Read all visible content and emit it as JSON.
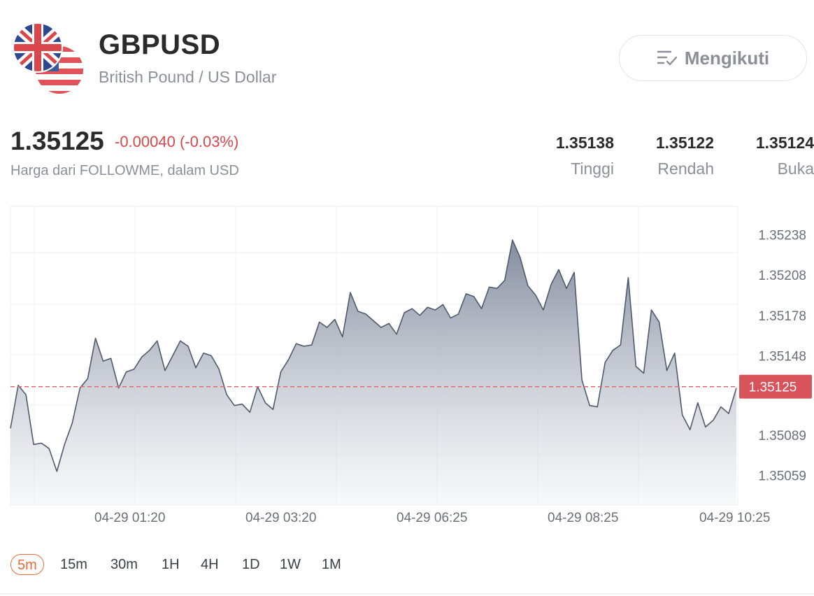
{
  "header": {
    "symbol": "GBPUSD",
    "name": "British Pound / US Dollar",
    "follow_label": "Mengikuti"
  },
  "quote": {
    "price": "1.35125",
    "change": "-0.00040 (-0.03%)",
    "note": "Harga dari FOLLOWME, dalam USD",
    "stats": [
      {
        "value": "1.35138",
        "label": "Tinggi"
      },
      {
        "value": "1.35122",
        "label": "Rendah"
      },
      {
        "value": "1.35124",
        "label": "Buka"
      }
    ]
  },
  "colors": {
    "up_down_red": "#d9474c",
    "line": "#4e5a6e",
    "fill_top": "#7d8699",
    "accent": "#e66b3d"
  },
  "chart_data": {
    "type": "area",
    "x_tick_labels": [
      "04-29 01:20",
      "04-29 03:20",
      "04-29 06:25",
      "04-29 08:25",
      "04-29 10:25"
    ],
    "y_tick_labels": [
      "1.35238",
      "1.35208",
      "1.35178",
      "1.35148",
      "1.35089",
      "1.35059"
    ],
    "ylim": [
      1.35037,
      1.35259
    ],
    "current_price": 1.35125,
    "current_price_label": "1.35125",
    "grid": true,
    "values": [
      1.35094,
      1.35126,
      1.35119,
      1.35082,
      1.35083,
      1.35079,
      1.35062,
      1.35082,
      1.35098,
      1.35124,
      1.35131,
      1.35161,
      1.35144,
      1.35146,
      1.35124,
      1.35136,
      1.35138,
      1.35147,
      1.35152,
      1.35159,
      1.35137,
      1.35148,
      1.35159,
      1.35155,
      1.35139,
      1.3515,
      1.35148,
      1.35138,
      1.35119,
      1.35111,
      1.35112,
      1.35106,
      1.35125,
      1.35113,
      1.35108,
      1.35136,
      1.35145,
      1.35157,
      1.35155,
      1.35156,
      1.35173,
      1.35169,
      1.35175,
      1.35162,
      1.35195,
      1.35181,
      1.35179,
      1.35174,
      1.35169,
      1.35172,
      1.35164,
      1.3518,
      1.35183,
      1.35178,
      1.35184,
      1.35182,
      1.35186,
      1.35176,
      1.35179,
      1.35194,
      1.35192,
      1.35183,
      1.35199,
      1.35198,
      1.35204,
      1.35234,
      1.35221,
      1.352,
      1.35193,
      1.35182,
      1.35201,
      1.35212,
      1.35198,
      1.3521,
      1.3513,
      1.35111,
      1.3511,
      1.35143,
      1.35152,
      1.35156,
      1.35206,
      1.3514,
      1.35135,
      1.35182,
      1.35173,
      1.35137,
      1.3515,
      1.35104,
      1.35093,
      1.35113,
      1.35095,
      1.351,
      1.3511,
      1.35105,
      1.35124
    ]
  },
  "timeframes": [
    {
      "label": "5m",
      "active": true
    },
    {
      "label": "15m",
      "active": false
    },
    {
      "label": "30m",
      "active": false
    },
    {
      "label": "1H",
      "active": false
    },
    {
      "label": "4H",
      "active": false
    },
    {
      "label": "1D",
      "active": false
    },
    {
      "label": "1W",
      "active": false
    },
    {
      "label": "1M",
      "active": false
    }
  ]
}
